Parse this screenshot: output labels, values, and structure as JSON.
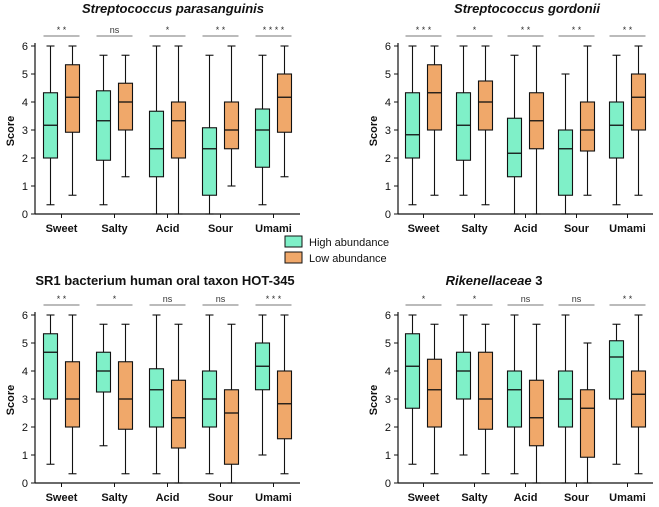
{
  "legend": [
    {
      "label": "High abundance",
      "color": "#7ff0c8"
    },
    {
      "label": "Low abundance",
      "color": "#f0a86a"
    }
  ],
  "chart_data": [
    {
      "type": "boxplot",
      "title": "Streptococcus parasanguinis",
      "title_italic_all": true,
      "title_main": "Streptococcus parasanguinis",
      "title_suffix": "",
      "ylabel": "Score",
      "ylim": [
        0,
        6
      ],
      "yticks": [
        "0",
        "1",
        "2",
        "3",
        "4",
        "5",
        "6"
      ],
      "categories": [
        "Sweet",
        "Salty",
        "Acid",
        "Sour",
        "Umami"
      ],
      "significance": [
        "* *",
        "ns",
        "*",
        "* *",
        "* * * *"
      ],
      "series": [
        {
          "name": "High abundance",
          "boxes": [
            {
              "min": 0.33,
              "q1": 2.0,
              "median": 3.17,
              "q3": 4.33,
              "max": 6.0
            },
            {
              "min": 0.33,
              "q1": 1.92,
              "median": 3.33,
              "q3": 4.4,
              "max": 5.67
            },
            {
              "min": 0.0,
              "q1": 1.33,
              "median": 2.33,
              "q3": 3.67,
              "max": 6.0
            },
            {
              "min": 0.0,
              "q1": 0.67,
              "median": 2.33,
              "q3": 3.08,
              "max": 5.67
            },
            {
              "min": 0.33,
              "q1": 1.67,
              "median": 3.0,
              "q3": 3.75,
              "max": 5.67
            }
          ]
        },
        {
          "name": "Low abundance",
          "boxes": [
            {
              "min": 0.67,
              "q1": 2.92,
              "median": 4.17,
              "q3": 5.33,
              "max": 6.0
            },
            {
              "min": 1.33,
              "q1": 3.0,
              "median": 4.0,
              "q3": 4.67,
              "max": 5.67
            },
            {
              "min": 0.0,
              "q1": 2.0,
              "median": 3.33,
              "q3": 4.0,
              "max": 6.0
            },
            {
              "min": 1.0,
              "q1": 2.33,
              "median": 3.0,
              "q3": 4.0,
              "max": 6.0
            },
            {
              "min": 1.33,
              "q1": 2.92,
              "median": 4.17,
              "q3": 5.0,
              "max": 6.0
            }
          ]
        }
      ]
    },
    {
      "type": "boxplot",
      "title": "Streptococcus gordonii",
      "title_italic_all": true,
      "title_main": "Streptococcus gordonii",
      "title_suffix": "",
      "ylabel": "Score",
      "ylim": [
        0,
        6
      ],
      "yticks": [
        "0",
        "1",
        "2",
        "3",
        "4",
        "5",
        "6"
      ],
      "categories": [
        "Sweet",
        "Salty",
        "Acid",
        "Sour",
        "Umami"
      ],
      "significance": [
        "* * *",
        "*",
        "* *",
        "* *",
        "* *"
      ],
      "series": [
        {
          "name": "High abundance",
          "boxes": [
            {
              "min": 0.33,
              "q1": 2.0,
              "median": 2.83,
              "q3": 4.33,
              "max": 6.0
            },
            {
              "min": 0.67,
              "q1": 1.92,
              "median": 3.17,
              "q3": 4.33,
              "max": 6.0
            },
            {
              "min": 0.0,
              "q1": 1.33,
              "median": 2.17,
              "q3": 3.42,
              "max": 5.67
            },
            {
              "min": 0.0,
              "q1": 0.67,
              "median": 2.33,
              "q3": 3.0,
              "max": 5.0
            },
            {
              "min": 0.33,
              "q1": 2.0,
              "median": 3.17,
              "q3": 4.0,
              "max": 5.67
            }
          ]
        },
        {
          "name": "Low abundance",
          "boxes": [
            {
              "min": 0.67,
              "q1": 3.0,
              "median": 4.33,
              "q3": 5.33,
              "max": 6.0
            },
            {
              "min": 0.33,
              "q1": 3.0,
              "median": 4.0,
              "q3": 4.75,
              "max": 6.0
            },
            {
              "min": 0.0,
              "q1": 2.33,
              "median": 3.33,
              "q3": 4.33,
              "max": 6.0
            },
            {
              "min": 0.67,
              "q1": 2.25,
              "median": 3.0,
              "q3": 4.0,
              "max": 6.0
            },
            {
              "min": 0.67,
              "q1": 3.0,
              "median": 4.17,
              "q3": 5.0,
              "max": 6.0
            }
          ]
        }
      ]
    },
    {
      "type": "boxplot",
      "title": "SR1 bacterium human oral taxon HOT-345",
      "title_italic_all": false,
      "title_main": "SR1 bacterium human oral taxon HOT-345",
      "title_suffix": "",
      "ylabel": "Score",
      "ylim": [
        0,
        6
      ],
      "yticks": [
        "0",
        "1",
        "2",
        "3",
        "4",
        "5",
        "6"
      ],
      "categories": [
        "Sweet",
        "Salty",
        "Acid",
        "Sour",
        "Umami"
      ],
      "significance": [
        "* *",
        "*",
        "ns",
        "ns",
        "* * *"
      ],
      "series": [
        {
          "name": "High abundance",
          "boxes": [
            {
              "min": 0.67,
              "q1": 3.0,
              "median": 4.67,
              "q3": 5.33,
              "max": 6.0
            },
            {
              "min": 1.33,
              "q1": 3.25,
              "median": 4.0,
              "q3": 4.67,
              "max": 5.67
            },
            {
              "min": 0.33,
              "q1": 2.0,
              "median": 3.33,
              "q3": 4.08,
              "max": 6.0
            },
            {
              "min": 0.33,
              "q1": 2.0,
              "median": 3.0,
              "q3": 4.0,
              "max": 6.0
            },
            {
              "min": 1.0,
              "q1": 3.33,
              "median": 4.17,
              "q3": 5.0,
              "max": 6.0
            }
          ]
        },
        {
          "name": "Low abundance",
          "boxes": [
            {
              "min": 0.33,
              "q1": 2.0,
              "median": 3.0,
              "q3": 4.33,
              "max": 6.0
            },
            {
              "min": 0.33,
              "q1": 1.92,
              "median": 3.0,
              "q3": 4.33,
              "max": 5.67
            },
            {
              "min": 0.0,
              "q1": 1.25,
              "median": 2.33,
              "q3": 3.67,
              "max": 5.67
            },
            {
              "min": 0.0,
              "q1": 0.67,
              "median": 2.5,
              "q3": 3.33,
              "max": 5.67
            },
            {
              "min": 0.33,
              "q1": 1.58,
              "median": 2.83,
              "q3": 4.0,
              "max": 6.0
            }
          ]
        }
      ]
    },
    {
      "type": "boxplot",
      "title": "Rikenellaceae 3",
      "title_italic_all": false,
      "title_main": "Rikenellaceae",
      "title_suffix": " 3",
      "ylabel": "Score",
      "ylim": [
        0,
        6
      ],
      "yticks": [
        "0",
        "1",
        "2",
        "3",
        "4",
        "5",
        "6"
      ],
      "categories": [
        "Sweet",
        "Salty",
        "Acid",
        "Sour",
        "Umami"
      ],
      "significance": [
        "*",
        "*",
        "ns",
        "ns",
        "* *"
      ],
      "series": [
        {
          "name": "High abundance",
          "boxes": [
            {
              "min": 0.67,
              "q1": 2.67,
              "median": 4.17,
              "q3": 5.33,
              "max": 6.0
            },
            {
              "min": 1.0,
              "q1": 3.0,
              "median": 4.0,
              "q3": 4.67,
              "max": 6.0
            },
            {
              "min": 0.33,
              "q1": 2.0,
              "median": 3.33,
              "q3": 4.0,
              "max": 6.0
            },
            {
              "min": 0.0,
              "q1": 2.0,
              "median": 3.0,
              "q3": 4.0,
              "max": 6.0
            },
            {
              "min": 0.67,
              "q1": 3.0,
              "median": 4.5,
              "q3": 5.08,
              "max": 5.67
            }
          ]
        },
        {
          "name": "Low abundance",
          "boxes": [
            {
              "min": 0.33,
              "q1": 2.0,
              "median": 3.33,
              "q3": 4.42,
              "max": 5.67
            },
            {
              "min": 0.33,
              "q1": 1.92,
              "median": 3.0,
              "q3": 4.67,
              "max": 5.67
            },
            {
              "min": 0.0,
              "q1": 1.33,
              "median": 2.33,
              "q3": 3.67,
              "max": 5.67
            },
            {
              "min": 0.0,
              "q1": 0.92,
              "median": 2.67,
              "q3": 3.33,
              "max": 5.0
            },
            {
              "min": 0.33,
              "q1": 2.0,
              "median": 3.17,
              "q3": 4.0,
              "max": 6.0
            }
          ]
        }
      ]
    }
  ]
}
